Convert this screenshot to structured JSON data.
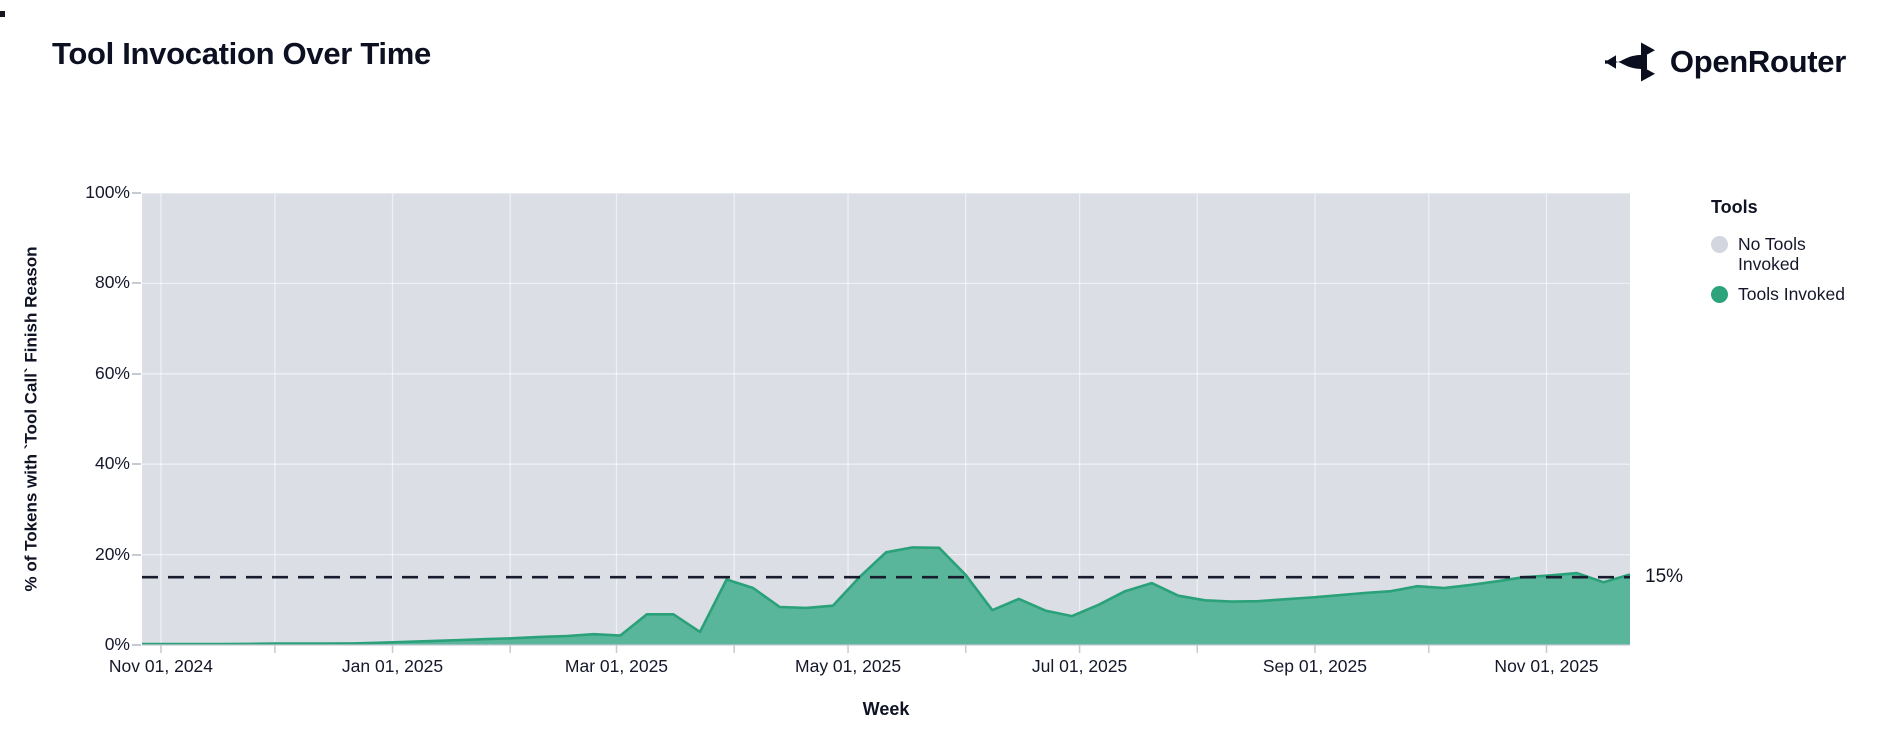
{
  "header": {
    "title": "Tool Invocation Over Time",
    "brand": {
      "name": "OpenRouter",
      "logo_icon": "openrouter-fork-arrows-icon"
    }
  },
  "chart_data": {
    "type": "area",
    "stacked": true,
    "normalized_percent": true,
    "title": "Tool Invocation Over Time",
    "xlabel": "Week",
    "ylabel": "% of Tokens with `Tool Call` Finish Reason",
    "ylim": [
      0,
      100
    ],
    "grid": true,
    "y_tick_labels": [
      "0%",
      "20%",
      "40%",
      "60%",
      "80%",
      "100%"
    ],
    "x_tick_labels": [
      "Nov 01, 2024",
      "Jan 01, 2025",
      "Mar 01, 2025",
      "May 01, 2025",
      "Jul 01, 2025",
      "Sep 01, 2025",
      "Nov 01, 2025"
    ],
    "legend": {
      "title": "Tools",
      "position": "right",
      "entries": [
        {
          "label": "No Tools Invoked",
          "color": "#d3d6df"
        },
        {
          "label": "Tools Invoked",
          "color": "#2ca37b"
        }
      ]
    },
    "annotation": {
      "type": "dashed-hline",
      "y": 15,
      "label": "15%",
      "color": "#191c2e"
    },
    "x": [
      "2024-10-27",
      "2024-11-03",
      "2024-11-10",
      "2024-11-17",
      "2024-11-24",
      "2024-12-01",
      "2024-12-08",
      "2024-12-15",
      "2024-12-22",
      "2024-12-29",
      "2025-01-05",
      "2025-01-12",
      "2025-01-19",
      "2025-01-26",
      "2025-02-02",
      "2025-02-09",
      "2025-02-16",
      "2025-02-23",
      "2025-03-02",
      "2025-03-09",
      "2025-03-16",
      "2025-03-23",
      "2025-03-30",
      "2025-04-06",
      "2025-04-13",
      "2025-04-20",
      "2025-04-27",
      "2025-05-04",
      "2025-05-11",
      "2025-05-18",
      "2025-05-25",
      "2025-06-01",
      "2025-06-08",
      "2025-06-15",
      "2025-06-22",
      "2025-06-29",
      "2025-07-06",
      "2025-07-13",
      "2025-07-20",
      "2025-07-27",
      "2025-08-03",
      "2025-08-10",
      "2025-08-17",
      "2025-08-24",
      "2025-08-31",
      "2025-09-07",
      "2025-09-14",
      "2025-09-21",
      "2025-09-28",
      "2025-10-05",
      "2025-10-12",
      "2025-10-19",
      "2025-10-26",
      "2025-11-02",
      "2025-11-09",
      "2025-11-16",
      "2025-11-23"
    ],
    "series": [
      {
        "name": "Tools Invoked",
        "fill": "#59b69b",
        "stroke": "#2aa178",
        "values": [
          0.2,
          0.2,
          0.2,
          0.2,
          0.25,
          0.3,
          0.3,
          0.3,
          0.35,
          0.5,
          0.7,
          0.9,
          1.1,
          1.3,
          1.5,
          1.8,
          2.0,
          2.4,
          2.1,
          6.8,
          6.8,
          2.9,
          14.5,
          12.6,
          8.4,
          8.2,
          8.7,
          15.0,
          20.5,
          21.6,
          21.5,
          15.5,
          7.7,
          10.2,
          7.6,
          6.4,
          8.9,
          11.9,
          13.7,
          10.9,
          9.9,
          9.6,
          9.7,
          10.1,
          10.5,
          11.0,
          11.5,
          11.9,
          13.0,
          12.6,
          13.3,
          14.1,
          15.0,
          15.4,
          15.9,
          13.9,
          15.6
        ]
      },
      {
        "name": "No Tools Invoked",
        "fill": "#dbdee5",
        "derived_values": "complement of Tools Invoked up to 100%"
      }
    ]
  },
  "colors": {
    "background": "#ffffff",
    "plot_background": "#dbdee5",
    "tools_fill": "#59b69b",
    "tools_stroke": "#2aa178",
    "dashed_line": "#191c2e",
    "axis": "#c6cad3",
    "gridline": "rgba(255,255,255,0.55)",
    "text": "#0e1122"
  }
}
